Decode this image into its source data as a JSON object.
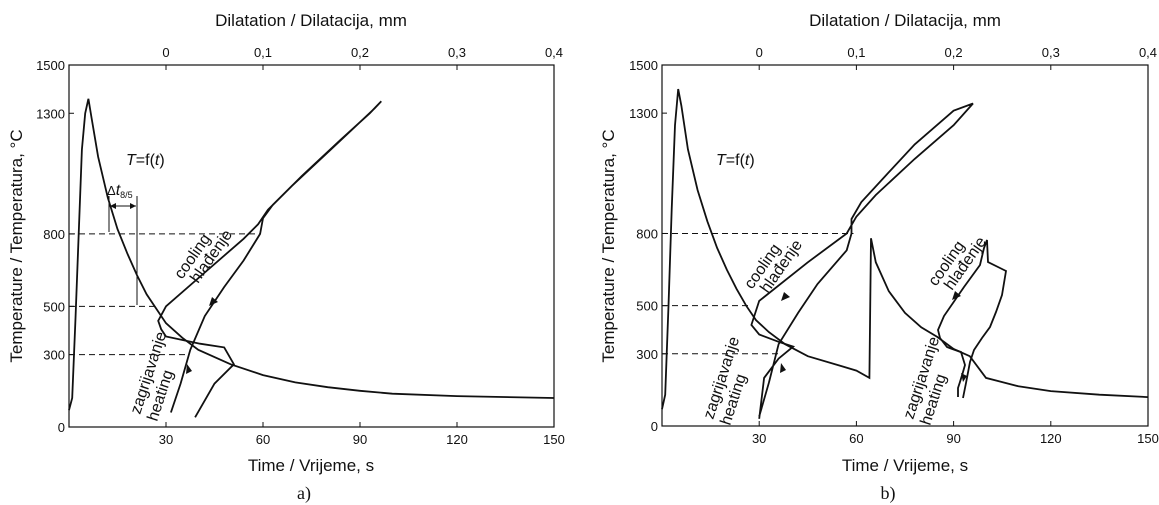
{
  "chart_data": [
    {
      "type": "line",
      "caption": "a)",
      "x_bottom": {
        "label": "Time / Vrijeme, s",
        "range": [
          0,
          150
        ],
        "ticks": [
          "30",
          "60",
          "90",
          "120",
          "150"
        ]
      },
      "x_top": {
        "label": "Dilatation / Dilatacija, mm",
        "range": [
          -0.1,
          0.4
        ],
        "ticks": [
          "0",
          "0,1",
          "0,2",
          "0,3",
          "0,4"
        ]
      },
      "y": {
        "label": "Temperature / Temperatura, °C",
        "range": [
          0,
          1500
        ],
        "ticks": [
          "0",
          "300",
          "500",
          "800",
          "1300",
          "1500"
        ]
      },
      "annotations": {
        "formula_T": "T",
        "formula_rest": "=f(",
        "formula_t": "t",
        "formula_close": ")",
        "delta": "Δ",
        "delta_t": "t",
        "delta_sub": "8/5"
      },
      "labels": {
        "cooling": "cooling",
        "cooling_hr": "hlađenje",
        "heating": "heating",
        "heating_hr": "zagrijavanje"
      },
      "series": [
        {
          "id": "thermal_cycle",
          "points": [
            [
              0,
              70
            ],
            [
              1,
              120
            ],
            [
              2,
              450
            ],
            [
              3,
              800
            ],
            [
              4,
              1150
            ],
            [
              5,
              1300
            ],
            [
              6,
              1360
            ],
            [
              7,
              1280
            ],
            [
              9,
              1120
            ],
            [
              12,
              950
            ],
            [
              15,
              820
            ],
            [
              18,
              720
            ],
            [
              21,
              630
            ],
            [
              24,
              550
            ],
            [
              27,
              490
            ],
            [
              30,
              430
            ],
            [
              35,
              370
            ],
            [
              40,
              320
            ],
            [
              50,
              260
            ],
            [
              60,
              215
            ],
            [
              70,
              185
            ],
            [
              80,
              165
            ],
            [
              90,
              150
            ],
            [
              100,
              138
            ],
            [
              120,
              128
            ],
            [
              150,
              120
            ]
          ]
        },
        {
          "id": "dilatation",
          "points": [
            [
              0.03,
              40
            ],
            [
              0.05,
              180
            ],
            [
              0.07,
              260
            ],
            [
              0.06,
              330
            ],
            [
              0.035,
              345
            ],
            [
              0,
              375
            ],
            [
              -0.005,
              405
            ],
            [
              -0.008,
              440
            ],
            [
              0,
              500
            ],
            [
              0.04,
              640
            ],
            [
              0.08,
              780
            ],
            [
              0.095,
              840
            ],
            [
              0.105,
              900
            ],
            [
              0.13,
              1000
            ],
            [
              0.17,
              1150
            ],
            [
              0.215,
              1320
            ],
            [
              0.222,
              1350
            ],
            [
              0.21,
              1300
            ],
            [
              0.18,
              1190
            ],
            [
              0.14,
              1040
            ],
            [
              0.11,
              920
            ],
            [
              0.1,
              865
            ],
            [
              0.097,
              800
            ],
            [
              0.08,
              690
            ],
            [
              0.06,
              580
            ],
            [
              0.04,
              460
            ],
            [
              0.025,
              320
            ],
            [
              0.015,
              180
            ],
            [
              0.005,
              60
            ]
          ]
        }
      ],
      "reference_lines": {
        "temps": [
          800,
          500,
          300
        ]
      }
    },
    {
      "type": "line",
      "caption": "b)",
      "x_bottom": {
        "label": "Time / Vrijeme, s",
        "range": [
          0,
          150
        ],
        "ticks": [
          "30",
          "60",
          "90",
          "120",
          "150"
        ]
      },
      "x_top": {
        "label": "Dilatation / Dilatacija, mm",
        "range": [
          -0.1,
          0.4
        ],
        "ticks": [
          "0",
          "0,1",
          "0,2",
          "0,3",
          "0,4"
        ]
      },
      "y": {
        "label": "Temperature / Temperatura, °C",
        "range": [
          0,
          1500
        ],
        "ticks": [
          "0",
          "300",
          "500",
          "800",
          "1300",
          "1500"
        ]
      },
      "annotations": {
        "formula_T": "T",
        "formula_rest": "=f(",
        "formula_t": "t",
        "formula_close": ")"
      },
      "labels": {
        "cooling": "cooling",
        "cooling_hr": "hlađenje",
        "heating": "heating",
        "heating_hr": "zagrijavanje",
        "cooling2": "cooling",
        "cooling2_hr": "hlađenje",
        "heating2": "heating",
        "heating2_hr": "zagrijavanje"
      },
      "series": [
        {
          "id": "thermal_cycle",
          "points": [
            [
              0,
              70
            ],
            [
              1,
              130
            ],
            [
              2,
              500
            ],
            [
              3,
              900
            ],
            [
              4,
              1250
            ],
            [
              5,
              1400
            ],
            [
              6,
              1330
            ],
            [
              8,
              1150
            ],
            [
              11,
              980
            ],
            [
              14,
              850
            ],
            [
              17,
              740
            ],
            [
              20,
              650
            ],
            [
              23,
              570
            ],
            [
              26,
              500
            ],
            [
              29,
              440
            ],
            [
              33,
              390
            ],
            [
              38,
              340
            ],
            [
              45,
              290
            ],
            [
              55,
              250
            ],
            [
              60,
              230
            ],
            [
              64,
              200
            ],
            [
              64.5,
              780
            ],
            [
              66,
              680
            ],
            [
              70,
              560
            ],
            [
              75,
              470
            ],
            [
              80,
              410
            ],
            [
              85,
              370
            ],
            [
              90,
              320
            ],
            [
              95,
              290
            ],
            [
              100,
              200
            ],
            [
              110,
              165
            ],
            [
              120,
              145
            ],
            [
              135,
              130
            ],
            [
              150,
              120
            ]
          ]
        },
        {
          "id": "dilatation",
          "points": [
            [
              0,
              30
            ],
            [
              0.005,
              200
            ],
            [
              0.02,
              280
            ],
            [
              0.035,
              330
            ],
            [
              0.02,
              350
            ],
            [
              0,
              380
            ],
            [
              -0.008,
              420
            ],
            [
              0,
              520
            ],
            [
              0.05,
              680
            ],
            [
              0.09,
              800
            ],
            [
              0.1,
              870
            ],
            [
              0.12,
              960
            ],
            [
              0.16,
              1110
            ],
            [
              0.2,
              1250
            ],
            [
              0.22,
              1340
            ],
            [
              0.2,
              1310
            ],
            [
              0.16,
              1170
            ],
            [
              0.13,
              1040
            ],
            [
              0.105,
              930
            ],
            [
              0.095,
              860
            ],
            [
              0.095,
              800
            ],
            [
              0.09,
              730
            ],
            [
              0.06,
              590
            ],
            [
              0.04,
              470
            ],
            [
              0.02,
              340
            ],
            [
              0.01,
              180
            ],
            [
              0,
              40
            ]
          ]
        }
      ],
      "reference_lines": {
        "temps": [
          800,
          500,
          300
        ]
      }
    }
  ]
}
